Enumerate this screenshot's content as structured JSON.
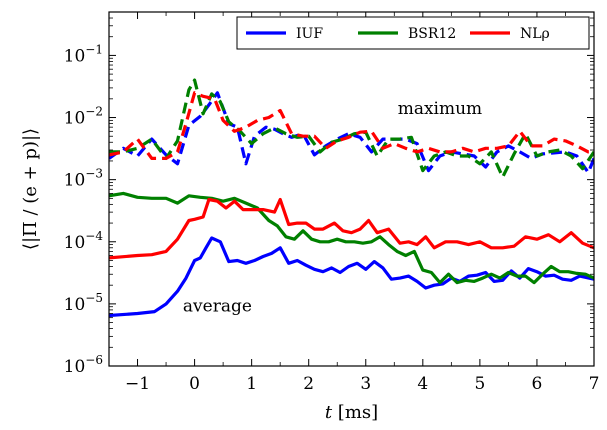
{
  "chart_data": {
    "type": "line",
    "xlabel": "t [ms]",
    "ylabel": "⟨|Π / (e + p)|⟩",
    "xlim": [
      -1.5,
      7
    ],
    "ylim": [
      1e-06,
      0.5
    ],
    "y_scale": "log",
    "grid": false,
    "legend_position": "top-right",
    "x_ticks": [
      -1,
      0,
      1,
      2,
      3,
      4,
      5,
      6,
      7
    ],
    "x_tick_labels": [
      "−1",
      "0",
      "1",
      "2",
      "3",
      "4",
      "5",
      "6",
      "7"
    ],
    "y_ticks": [
      1e-06,
      1e-05,
      0.0001,
      0.001,
      0.01,
      0.1
    ],
    "y_tick_labels": [
      {
        "base": "10",
        "exp": "−6"
      },
      {
        "base": "10",
        "exp": "−5"
      },
      {
        "base": "10",
        "exp": "−4"
      },
      {
        "base": "10",
        "exp": "−3"
      },
      {
        "base": "10",
        "exp": "−2"
      },
      {
        "base": "10",
        "exp": "−1"
      }
    ],
    "annotations": [
      {
        "text": "maximum",
        "x": 4.3,
        "y": 0.0115
      },
      {
        "text": "average",
        "x": 0.4,
        "y": 7.5e-06
      }
    ],
    "series": [
      {
        "name": "IUF",
        "color": "#0000ff",
        "kind": "average",
        "x": [
          -1.5,
          -1.0,
          -0.7,
          -0.5,
          -0.3,
          -0.15,
          0.0,
          0.1,
          0.2,
          0.3,
          0.45,
          0.6,
          0.75,
          0.9,
          1.05,
          1.2,
          1.35,
          1.5,
          1.65,
          1.8,
          1.95,
          2.1,
          2.25,
          2.4,
          2.55,
          2.7,
          2.85,
          3.0,
          3.15,
          3.3,
          3.45,
          3.6,
          3.75,
          3.9,
          4.05,
          4.2,
          4.35,
          4.5,
          4.65,
          4.8,
          4.95,
          5.1,
          5.25,
          5.4,
          5.55,
          5.7,
          5.85,
          6.0,
          6.15,
          6.3,
          6.45,
          6.6,
          6.75,
          7.0
        ],
        "y": [
          6.5e-06,
          7e-06,
          7.5e-06,
          1e-05,
          1.6e-05,
          2.6e-05,
          5e-05,
          5.5e-05,
          8e-05,
          0.000115,
          0.0001,
          4.8e-05,
          5e-05,
          4.5e-05,
          5e-05,
          5.8e-05,
          6.5e-05,
          8e-05,
          4.5e-05,
          5e-05,
          4.2e-05,
          3.6e-05,
          3.3e-05,
          3.8e-05,
          3.2e-05,
          4e-05,
          4.5e-05,
          3.6e-05,
          4.8e-05,
          3.8e-05,
          2.5e-05,
          2.6e-05,
          2.8e-05,
          2.3e-05,
          1.8e-05,
          2e-05,
          2.1e-05,
          2.6e-05,
          2.3e-05,
          2.8e-05,
          2.9e-05,
          3.2e-05,
          2.3e-05,
          2.4e-05,
          3.4e-05,
          2.6e-05,
          3.7e-05,
          3.3e-05,
          2.8e-05,
          2.9e-05,
          2.5e-05,
          2.4e-05,
          2.8e-05,
          2.5e-05
        ]
      },
      {
        "name": "IUF max",
        "color": "#0000ff",
        "kind": "maximum",
        "x": [
          -1.5,
          -1.25,
          -1.0,
          -0.75,
          -0.5,
          -0.3,
          -0.1,
          0.1,
          0.25,
          0.4,
          0.6,
          0.75,
          0.9,
          1.05,
          1.25,
          1.4,
          1.55,
          1.7,
          1.9,
          2.1,
          2.3,
          2.5,
          2.7,
          2.9,
          3.1,
          3.3,
          3.5,
          3.7,
          3.9,
          4.1,
          4.3,
          4.5,
          4.7,
          4.9,
          5.1,
          5.3,
          5.5,
          5.7,
          5.9,
          6.1,
          6.3,
          6.5,
          6.7,
          6.9,
          7.0
        ],
        "y": [
          0.0022,
          0.0032,
          0.0024,
          0.0045,
          0.0025,
          0.0018,
          0.0075,
          0.0105,
          0.016,
          0.025,
          0.008,
          0.007,
          0.0018,
          0.005,
          0.007,
          0.0065,
          0.0055,
          0.0048,
          0.0055,
          0.0025,
          0.0035,
          0.0045,
          0.0055,
          0.0048,
          0.0028,
          0.0045,
          0.0045,
          0.0045,
          0.0038,
          0.0014,
          0.0024,
          0.0028,
          0.0026,
          0.0024,
          0.0016,
          0.0028,
          0.0035,
          0.0028,
          0.0022,
          0.0026,
          0.0027,
          0.0028,
          0.0024,
          0.0013,
          0.0022
        ]
      },
      {
        "name": "BSR12",
        "color": "#008000",
        "kind": "average",
        "x": [
          -1.5,
          -1.25,
          -1.0,
          -0.75,
          -0.5,
          -0.3,
          -0.1,
          0.1,
          0.3,
          0.5,
          0.7,
          0.9,
          1.1,
          1.3,
          1.45,
          1.6,
          1.75,
          1.9,
          2.05,
          2.2,
          2.35,
          2.5,
          2.65,
          2.8,
          2.95,
          3.1,
          3.25,
          3.4,
          3.55,
          3.7,
          3.85,
          4.0,
          4.15,
          4.3,
          4.45,
          4.6,
          4.75,
          4.9,
          5.05,
          5.2,
          5.35,
          5.5,
          5.65,
          5.8,
          5.95,
          6.1,
          6.25,
          6.4,
          6.55,
          6.7,
          6.85,
          7.0
        ],
        "y": [
          0.00055,
          0.0006,
          0.00052,
          0.0005,
          0.0005,
          0.00042,
          0.00055,
          0.00052,
          0.0005,
          0.00045,
          0.0005,
          0.00042,
          0.00035,
          0.00022,
          0.00018,
          0.00012,
          0.00011,
          0.00015,
          0.00011,
          0.0001,
          0.0001,
          0.00011,
          0.0001,
          0.0001,
          9.5e-05,
          0.0001,
          0.00012,
          9e-05,
          7e-05,
          6e-05,
          7e-05,
          3.5e-05,
          3.2e-05,
          2.2e-05,
          3e-05,
          2.2e-05,
          2.4e-05,
          2.3e-05,
          2.6e-05,
          3e-05,
          2.6e-05,
          3.2e-05,
          2.8e-05,
          2.8e-05,
          2.2e-05,
          3e-05,
          4e-05,
          3.3e-05,
          3.3e-05,
          3.1e-05,
          3e-05,
          2.6e-05
        ]
      },
      {
        "name": "BSR12 max",
        "color": "#008000",
        "kind": "maximum",
        "x": [
          -1.5,
          -1.25,
          -1.0,
          -0.75,
          -0.5,
          -0.3,
          -0.1,
          0.0,
          0.15,
          0.3,
          0.45,
          0.6,
          0.8,
          1.0,
          1.2,
          1.4,
          1.6,
          1.8,
          2.0,
          2.2,
          2.4,
          2.6,
          2.8,
          3.0,
          3.2,
          3.4,
          3.6,
          3.8,
          4.0,
          4.2,
          4.4,
          4.6,
          4.8,
          5.0,
          5.2,
          5.4,
          5.6,
          5.8,
          6.0,
          6.2,
          6.4,
          6.6,
          6.8,
          7.0
        ],
        "y": [
          0.0028,
          0.0028,
          0.0032,
          0.0045,
          0.0022,
          0.0042,
          0.028,
          0.04,
          0.0115,
          0.024,
          0.018,
          0.0085,
          0.006,
          0.0038,
          0.0055,
          0.0068,
          0.0055,
          0.0048,
          0.005,
          0.0028,
          0.004,
          0.0045,
          0.0055,
          0.0058,
          0.0024,
          0.0045,
          0.0045,
          0.0048,
          0.0014,
          0.0024,
          0.0028,
          0.0024,
          0.0024,
          0.0018,
          0.0028,
          0.0011,
          0.0026,
          0.0055,
          0.0024,
          0.0028,
          0.003,
          0.0024,
          0.0015,
          0.0028
        ]
      },
      {
        "name": "NLρ",
        "color": "#ff0000",
        "kind": "average",
        "x": [
          -1.5,
          -1.0,
          -0.75,
          -0.5,
          -0.3,
          -0.1,
          0.0,
          0.15,
          0.25,
          0.4,
          0.55,
          0.7,
          0.85,
          1.0,
          1.2,
          1.4,
          1.5,
          1.65,
          1.8,
          1.95,
          2.1,
          2.25,
          2.45,
          2.6,
          2.75,
          2.9,
          3.05,
          3.2,
          3.4,
          3.6,
          3.75,
          3.9,
          4.05,
          4.2,
          4.4,
          4.6,
          4.8,
          5.0,
          5.2,
          5.4,
          5.6,
          5.8,
          6.0,
          6.2,
          6.4,
          6.6,
          6.8,
          7.0
        ],
        "y": [
          5.5e-05,
          6e-05,
          6.2e-05,
          7e-05,
          0.00011,
          0.00022,
          0.00023,
          0.00025,
          0.00048,
          0.00045,
          0.00035,
          0.00045,
          0.00033,
          0.00033,
          0.00033,
          0.0003,
          0.00048,
          0.00019,
          0.0002,
          0.0002,
          0.00016,
          0.00016,
          0.0002,
          0.00015,
          0.00014,
          0.00016,
          0.00022,
          0.00014,
          0.00016,
          9.5e-05,
          0.0001,
          9e-05,
          0.00012,
          8e-05,
          0.0001,
          0.0001,
          9e-05,
          0.0001,
          8e-05,
          8e-05,
          8.5e-05,
          0.00012,
          0.00011,
          0.00013,
          0.0001,
          0.00014,
          9.5e-05,
          8e-05
        ]
      },
      {
        "name": "NLρ max",
        "color": "#ff0000",
        "kind": "maximum",
        "x": [
          -1.5,
          -1.25,
          -1.0,
          -0.75,
          -0.5,
          -0.3,
          -0.15,
          0.0,
          0.15,
          0.35,
          0.5,
          0.7,
          0.9,
          1.1,
          1.3,
          1.5,
          1.7,
          1.9,
          2.1,
          2.3,
          2.5,
          2.7,
          2.9,
          3.1,
          3.3,
          3.5,
          3.7,
          3.9,
          4.1,
          4.3,
          4.5,
          4.7,
          4.9,
          5.1,
          5.3,
          5.5,
          5.7,
          5.9,
          6.1,
          6.3,
          6.5,
          6.7,
          6.9,
          7.0
        ],
        "y": [
          0.0025,
          0.0028,
          0.0045,
          0.0022,
          0.0022,
          0.0028,
          0.008,
          0.025,
          0.022,
          0.02,
          0.009,
          0.006,
          0.007,
          0.009,
          0.01,
          0.013,
          0.0055,
          0.005,
          0.005,
          0.0032,
          0.0042,
          0.0048,
          0.0058,
          0.006,
          0.0032,
          0.0038,
          0.0032,
          0.0028,
          0.0032,
          0.0028,
          0.0028,
          0.0032,
          0.0028,
          0.0032,
          0.0032,
          0.0035,
          0.006,
          0.0035,
          0.0035,
          0.0045,
          0.0042,
          0.0035,
          0.0028,
          0.0028
        ]
      }
    ]
  },
  "legend": {
    "entries": [
      {
        "label": "IUF",
        "color": "#0000ff"
      },
      {
        "label": "BSR12",
        "color": "#008000"
      },
      {
        "label": "NLρ",
        "color": "#ff0000"
      }
    ]
  }
}
